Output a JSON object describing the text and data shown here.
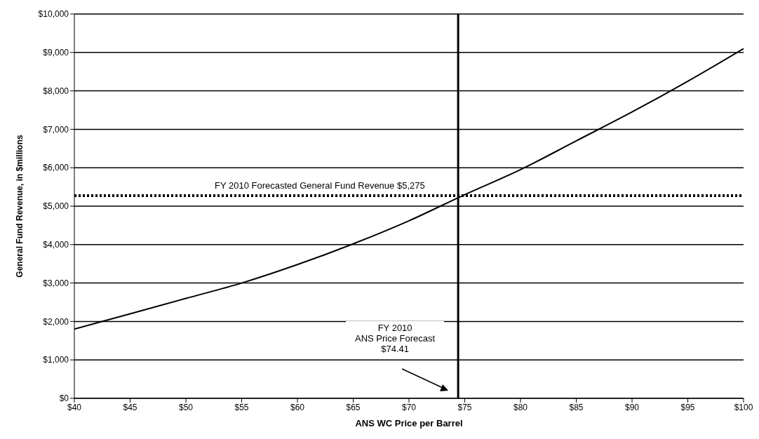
{
  "chart_data": {
    "type": "line",
    "xlabel": "ANS WC Price per Barrel",
    "ylabel": "General Fund Revenue, in $millions",
    "x": [
      40,
      45,
      50,
      55,
      60,
      65,
      70,
      75,
      80,
      85,
      90,
      95,
      100
    ],
    "series": [
      {
        "color": "#000000",
        "values": [
          1800,
          2200,
          2600,
          3000,
          3480,
          4020,
          4620,
          5300,
          5950,
          6700,
          7450,
          8250,
          9100
        ]
      }
    ],
    "xlim": [
      40,
      100
    ],
    "ylim": [
      0,
      10000
    ],
    "xticks": [
      {
        "value": 40,
        "label": "$40"
      },
      {
        "value": 45,
        "label": "$45"
      },
      {
        "value": 50,
        "label": "$50"
      },
      {
        "value": 55,
        "label": "$55"
      },
      {
        "value": 60,
        "label": "$60"
      },
      {
        "value": 65,
        "label": "$65"
      },
      {
        "value": 70,
        "label": "$70"
      },
      {
        "value": 75,
        "label": "$75"
      },
      {
        "value": 80,
        "label": "$80"
      },
      {
        "value": 85,
        "label": "$85"
      },
      {
        "value": 90,
        "label": "$90"
      },
      {
        "value": 95,
        "label": "$95"
      },
      {
        "value": 100,
        "label": "$100"
      }
    ],
    "yticks": [
      {
        "value": 0,
        "label": "$0"
      },
      {
        "value": 1000,
        "label": "$1,000"
      },
      {
        "value": 2000,
        "label": "$2,000"
      },
      {
        "value": 3000,
        "label": "$3,000"
      },
      {
        "value": 4000,
        "label": "$4,000"
      },
      {
        "value": 5000,
        "label": "$5,000"
      },
      {
        "value": 6000,
        "label": "$6,000"
      },
      {
        "value": 7000,
        "label": "$7,000"
      },
      {
        "value": 8000,
        "label": "$8,000"
      },
      {
        "value": 9000,
        "label": "$9,000"
      },
      {
        "value": 10000,
        "label": "$10,000"
      }
    ],
    "grid": "y",
    "marker": "none",
    "line_style": "solid",
    "ref_lines": [
      {
        "axis": "y",
        "value": 5275,
        "label": "FY 2010 Forecasted General Fund Revenue  $5,275",
        "line_style": "dotted",
        "color": "#000000"
      },
      {
        "axis": "x",
        "value": 74.41,
        "label": "FY 2010\nANS Price Forecast\n$74.41",
        "line_style": "solid",
        "color": "#000000"
      }
    ]
  }
}
